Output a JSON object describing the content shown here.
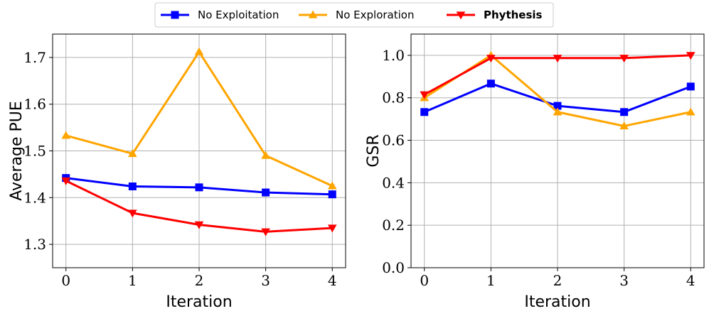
{
  "legend": {
    "entries": [
      {
        "label": "No Exploitation",
        "color": "#0000ff",
        "marker": "square",
        "bold": false
      },
      {
        "label": "No Exploration",
        "color": "#ffa500",
        "marker": "triangle-up",
        "bold": false
      },
      {
        "label": "Phythesis",
        "color": "#ff0000",
        "marker": "triangle-down",
        "bold": true
      }
    ]
  },
  "chart_data": [
    {
      "type": "line",
      "xlabel": "Iteration",
      "ylabel": "Average PUE",
      "x": [
        0,
        1,
        2,
        3,
        4
      ],
      "xlim": [
        -0.2,
        4.2
      ],
      "ylim": [
        1.25,
        1.75
      ],
      "xticks": [
        "0",
        "1",
        "2",
        "3",
        "4"
      ],
      "yticks": [
        1.3,
        1.4,
        1.5,
        1.6,
        1.7
      ],
      "ytick_labels": [
        "1.3",
        "1.4",
        "1.5",
        "1.6",
        "1.7"
      ],
      "grid": true,
      "series": [
        {
          "name": "No Exploitation",
          "color": "#0000ff",
          "marker": "square",
          "values": [
            1.442,
            1.424,
            1.422,
            1.411,
            1.407
          ]
        },
        {
          "name": "No Exploration",
          "color": "#ffa500",
          "marker": "triangle-up",
          "values": [
            1.533,
            1.494,
            1.712,
            1.49,
            1.425
          ]
        },
        {
          "name": "Phythesis",
          "color": "#ff0000",
          "marker": "triangle-down",
          "values": [
            1.436,
            1.367,
            1.342,
            1.327,
            1.335
          ]
        }
      ]
    },
    {
      "type": "line",
      "xlabel": "Iteration",
      "ylabel": "GSR",
      "x": [
        0,
        1,
        2,
        3,
        4
      ],
      "xlim": [
        -0.2,
        4.2
      ],
      "ylim": [
        0.0,
        1.1
      ],
      "xticks": [
        "0",
        "1",
        "2",
        "3",
        "4"
      ],
      "yticks": [
        0.0,
        0.2,
        0.4,
        0.6,
        0.8,
        1.0
      ],
      "ytick_labels": [
        "0.0",
        "0.2",
        "0.4",
        "0.6",
        "0.8",
        "1.0"
      ],
      "grid": true,
      "series": [
        {
          "name": "No Exploitation",
          "color": "#0000ff",
          "marker": "square",
          "values": [
            0.733,
            0.867,
            0.762,
            0.733,
            0.853
          ]
        },
        {
          "name": "No Exploration",
          "color": "#ffa500",
          "marker": "triangle-up",
          "values": [
            0.8,
            1.0,
            0.733,
            0.667,
            0.733
          ]
        },
        {
          "name": "Phythesis",
          "color": "#ff0000",
          "marker": "triangle-down",
          "values": [
            0.815,
            0.987,
            0.987,
            0.987,
            1.0
          ]
        }
      ]
    }
  ]
}
